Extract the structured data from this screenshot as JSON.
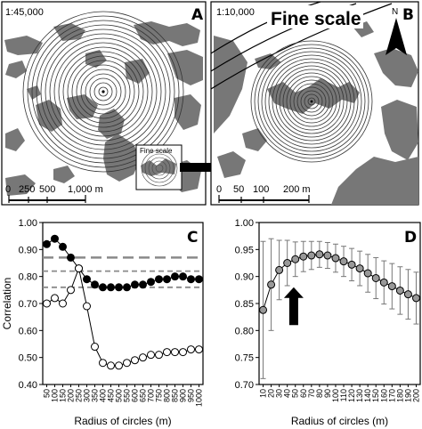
{
  "figure": {
    "panelA": {
      "letter": "A",
      "scale_text": "1:45,000",
      "inset_label": "Fine scale",
      "scalebar_labels": [
        "0",
        "250",
        "500",
        "1,000 m"
      ]
    },
    "panelB": {
      "letter": "B",
      "scale_text": "1:10,000",
      "title": "Fine scale",
      "north_label": "N",
      "scalebar_labels": [
        "0",
        "50",
        "100",
        "200 m"
      ]
    }
  },
  "chart_data": [
    {
      "panel": "C",
      "type": "line",
      "xlabel": "Radius of circles (m)",
      "ylabel": "Correlation",
      "ylim": [
        0.4,
        1.0
      ],
      "yticks": [
        "0.40",
        "0.50",
        "0.60",
        "0.70",
        "0.80",
        "0.90",
        "1.00"
      ],
      "x": [
        50,
        100,
        150,
        200,
        250,
        300,
        350,
        400,
        450,
        500,
        550,
        600,
        650,
        700,
        750,
        800,
        850,
        900,
        950,
        1000
      ],
      "series": [
        {
          "values": [
            0.92,
            0.94,
            0.91,
            0.87,
            0.83,
            0.79,
            0.77,
            0.76,
            0.76,
            0.76,
            0.76,
            0.77,
            0.77,
            0.78,
            0.79,
            0.79,
            0.8,
            0.8,
            0.79,
            0.79
          ],
          "color": "#000000",
          "marker": "filled"
        },
        {
          "values": [
            0.7,
            0.72,
            0.7,
            0.75,
            0.83,
            0.69,
            0.54,
            0.48,
            0.47,
            0.47,
            0.48,
            0.49,
            0.5,
            0.51,
            0.51,
            0.52,
            0.52,
            0.52,
            0.53,
            0.53
          ],
          "color": "#000000",
          "marker": "open"
        }
      ],
      "reference_lines": [
        {
          "y": 0.87,
          "style": "long-dash"
        },
        {
          "y": 0.82,
          "style": "dash"
        },
        {
          "y": 0.76,
          "style": "dash"
        }
      ],
      "grid": false
    },
    {
      "panel": "D",
      "type": "line",
      "xlabel": "Radius of circles (m)",
      "ylabel": "",
      "ylim": [
        0.7,
        1.0
      ],
      "yticks": [
        "0.70",
        "0.75",
        "0.80",
        "0.85",
        "0.90",
        "0.95",
        "1.00"
      ],
      "x": [
        10,
        20,
        30,
        40,
        50,
        60,
        70,
        80,
        90,
        100,
        110,
        120,
        130,
        140,
        150,
        160,
        170,
        180,
        190,
        200
      ],
      "series": [
        {
          "values": [
            0.838,
            0.885,
            0.912,
            0.925,
            0.932,
            0.937,
            0.939,
            0.941,
            0.939,
            0.934,
            0.928,
            0.922,
            0.915,
            0.906,
            0.897,
            0.889,
            0.882,
            0.874,
            0.867,
            0.86
          ],
          "errors": [
            0.127,
            0.085,
            0.055,
            0.042,
            0.032,
            0.028,
            0.026,
            0.024,
            0.024,
            0.026,
            0.028,
            0.03,
            0.032,
            0.035,
            0.038,
            0.04,
            0.042,
            0.044,
            0.046,
            0.048
          ],
          "color": "#999999",
          "marker": "filled"
        }
      ],
      "annotation": "arrow",
      "grid": false
    }
  ]
}
